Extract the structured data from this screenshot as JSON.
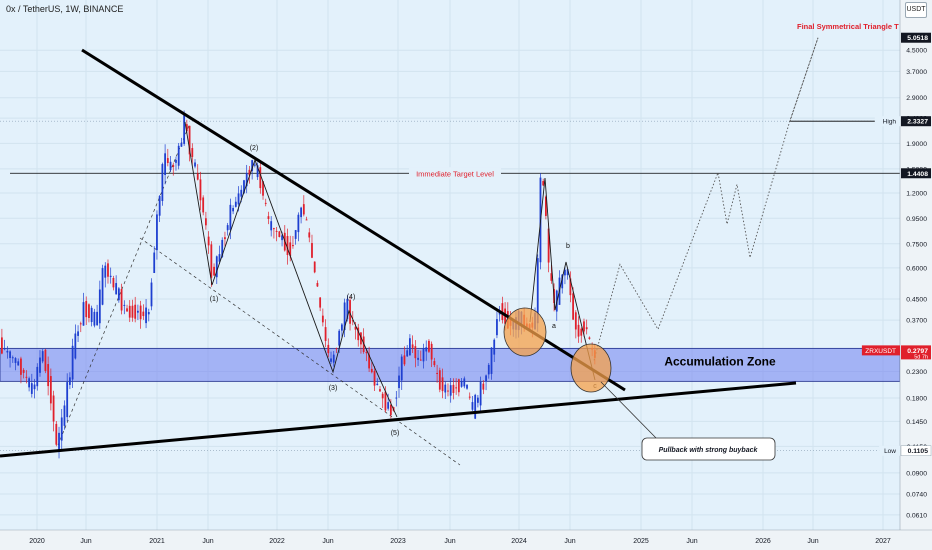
{
  "header": {
    "symbol": "0x / TetherUS, 1W, BINANCE",
    "currency": "USDT"
  },
  "colors": {
    "background": "#e3f1fb",
    "up_candle": "#1e3fd0",
    "down_candle": "#e0202c",
    "trendline": "#000000",
    "zone": "#6f7ff0",
    "target_label": "#e0202c",
    "circle_fill": "#f5a04a"
  },
  "annotations": {
    "final_target": "Final Symmetrical Triangle T",
    "immediate_target": "Immediate Target Level",
    "accumulation_zone": "Accumulation Zone",
    "pullback_note": "Pullback with strong buyback",
    "wave_1": "(1)",
    "wave_2": "(2)",
    "wave_3": "(3)",
    "wave_4": "(4)",
    "wave_5": "(5)",
    "wave_a": "a",
    "wave_b": "b",
    "wave_c": "c"
  },
  "chart_data": {
    "type": "candlestick",
    "scale": "log",
    "x_ticks": [
      "2020",
      "Jun",
      "2021",
      "Jun",
      "2022",
      "Jun",
      "2023",
      "Jun",
      "2024",
      "Jun",
      "2025",
      "Jun",
      "2026",
      "Jun",
      "2027"
    ],
    "y_ticks": [
      "4.5000",
      "3.7000",
      "2.9000",
      "2.4000",
      "1.9000",
      "1.5000",
      "1.2000",
      "0.9500",
      "0.7500",
      "0.6000",
      "0.4500",
      "0.3700",
      "0.2300",
      "0.1800",
      "0.1450",
      "0.1150",
      "0.0900",
      "0.0740",
      "0.0610"
    ],
    "price_labels": [
      {
        "label": "",
        "value": "5.0518",
        "color": "#131722"
      },
      {
        "label": "High",
        "value": "2.3327",
        "color": "#131722"
      },
      {
        "label": "",
        "value": "1.4408",
        "color": "#131722"
      },
      {
        "label": "ZRXUSDT",
        "value": "0.2797",
        "sub": "5d 7h",
        "color": "#e0202c"
      },
      {
        "label": "Low",
        "value": "0.1105",
        "color": "#ffffff"
      }
    ],
    "levels": {
      "final_target": 5.0518,
      "high": 2.3327,
      "immediate_target": 1.4408,
      "current": 0.2797,
      "low": 0.1105,
      "accumulation_zone": [
        0.21,
        0.285
      ]
    },
    "projection": [
      0.255,
      0.62,
      0.34,
      0.58,
      0.36,
      1.45,
      0.9,
      1.3,
      0.66,
      2.35,
      5.05
    ]
  }
}
